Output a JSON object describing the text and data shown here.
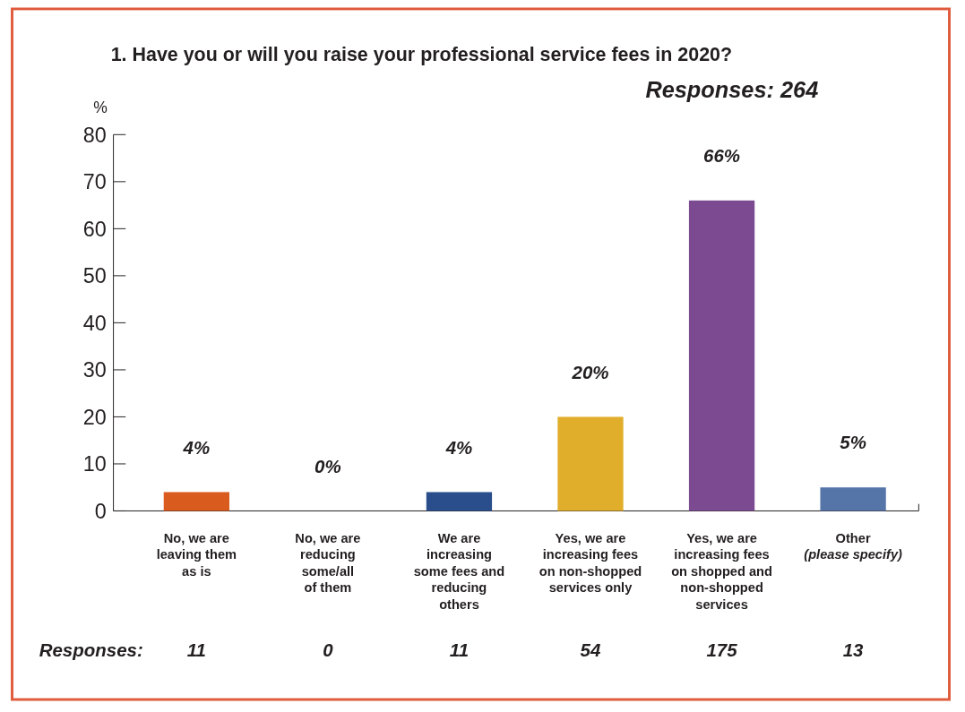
{
  "chart_data": {
    "type": "bar",
    "title": "1. Have you or will you raise your professional service fees in 2020?",
    "subtitle": "Responses: 264",
    "ylabel": "%",
    "categories": [
      "No, we are\nleaving them\nas is",
      "No, we are\nreducing\nsome/all\nof them",
      "We are\nincreasing\nsome fees and\nreducing\nothers",
      "Yes, we are\nincreasing fees\non non-shopped\nservices only",
      "Yes, we are\nincreasing fees\non shopped and\nnon-shopped\nservices",
      "Other\n(please specify)"
    ],
    "values": [
      4,
      0,
      4,
      20,
      66,
      5
    ],
    "colors": [
      "#d95b1e",
      "#888888",
      "#2a4e8c",
      "#e0ae2a",
      "#7b4a91",
      "#5574a8"
    ],
    "value_labels": [
      "4%",
      "0%",
      "4%",
      "20%",
      "66%",
      "5%"
    ],
    "ylim": [
      0,
      80
    ],
    "yticks": [
      0,
      10,
      20,
      30,
      40,
      50,
      60,
      70,
      80
    ],
    "grid": false,
    "annotations": [
      "Responses:",
      "11",
      "0",
      "11",
      "54",
      "175",
      "13"
    ]
  }
}
